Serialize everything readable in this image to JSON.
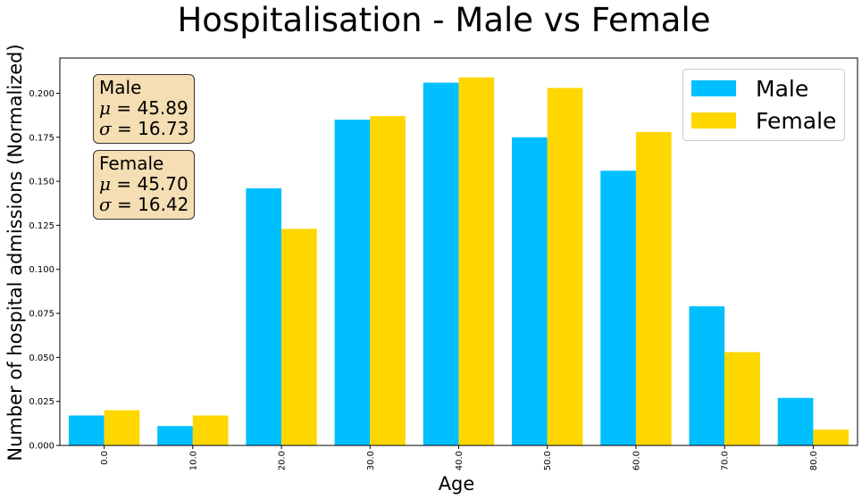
{
  "chart_data": {
    "type": "bar",
    "title": "Hospitalisation - Male vs Female",
    "xlabel": "Age",
    "ylabel": "Number of hospital admissions (Normalized)",
    "categories": [
      "0.0",
      "10.0",
      "20.0",
      "30.0",
      "40.0",
      "50.0",
      "60.0",
      "70.0",
      "80.0"
    ],
    "series": [
      {
        "name": "Male",
        "color": "#00bfff",
        "values": [
          0.017,
          0.011,
          0.146,
          0.185,
          0.206,
          0.175,
          0.156,
          0.079,
          0.027
        ]
      },
      {
        "name": "Female",
        "color": "#ffd700",
        "values": [
          0.02,
          0.017,
          0.123,
          0.187,
          0.209,
          0.203,
          0.178,
          0.053,
          0.009
        ]
      }
    ],
    "ylim": [
      0,
      0.22
    ],
    "yticks": [
      "0.000",
      "0.025",
      "0.050",
      "0.075",
      "0.100",
      "0.125",
      "0.150",
      "0.175",
      "0.200"
    ],
    "grid": false,
    "legend_position": "top-right"
  },
  "annotations": {
    "male": {
      "label": "Male",
      "mu_sym": "μ",
      "mu": "45.89",
      "sigma_sym": "σ",
      "sigma": "16.73"
    },
    "female": {
      "label": "Female",
      "mu_sym": "μ",
      "mu": "45.70",
      "sigma_sym": "σ",
      "sigma": "16.42"
    }
  },
  "legend": {
    "male_label": "Male",
    "female_label": "Female",
    "male_color": "#00bfff",
    "female_color": "#ffd700"
  }
}
